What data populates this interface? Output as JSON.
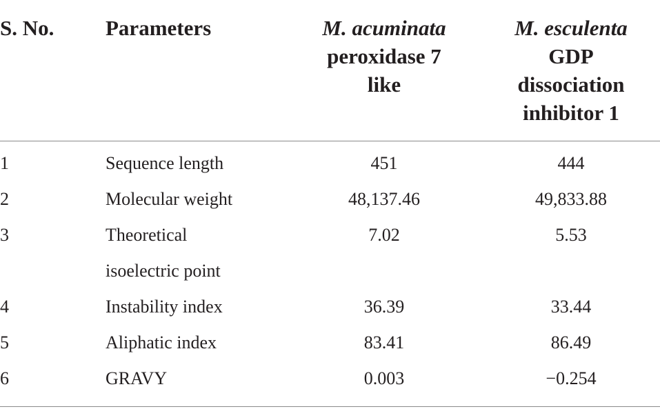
{
  "table": {
    "headers": {
      "sno": "S. No.",
      "parameters": "Parameters",
      "col3_italic": "M. acuminata",
      "col3_line2": "peroxidase 7",
      "col3_line3": "like",
      "col4_italic": "M. esculenta",
      "col4_line2": "GDP",
      "col4_line3": "dissociation",
      "col4_line4": "inhibitor 1"
    },
    "rows": [
      {
        "sno": "1",
        "parameter": "Sequence length",
        "parameter_line2": "",
        "acuminata": "451",
        "esculenta": "444"
      },
      {
        "sno": "2",
        "parameter": "Molecular weight",
        "parameter_line2": "",
        "acuminata": "48,137.46",
        "esculenta": "49,833.88"
      },
      {
        "sno": "3",
        "parameter": "Theoretical",
        "parameter_line2": "isoelectric point",
        "acuminata": "7.02",
        "esculenta": "5.53"
      },
      {
        "sno": "4",
        "parameter": "Instability index",
        "parameter_line2": "",
        "acuminata": "36.39",
        "esculenta": "33.44"
      },
      {
        "sno": "5",
        "parameter": "Aliphatic index",
        "parameter_line2": "",
        "acuminata": "83.41",
        "esculenta": "86.49"
      },
      {
        "sno": "6",
        "parameter": "GRAVY",
        "parameter_line2": "",
        "acuminata": "0.003",
        "esculenta": "−0.254"
      }
    ]
  }
}
